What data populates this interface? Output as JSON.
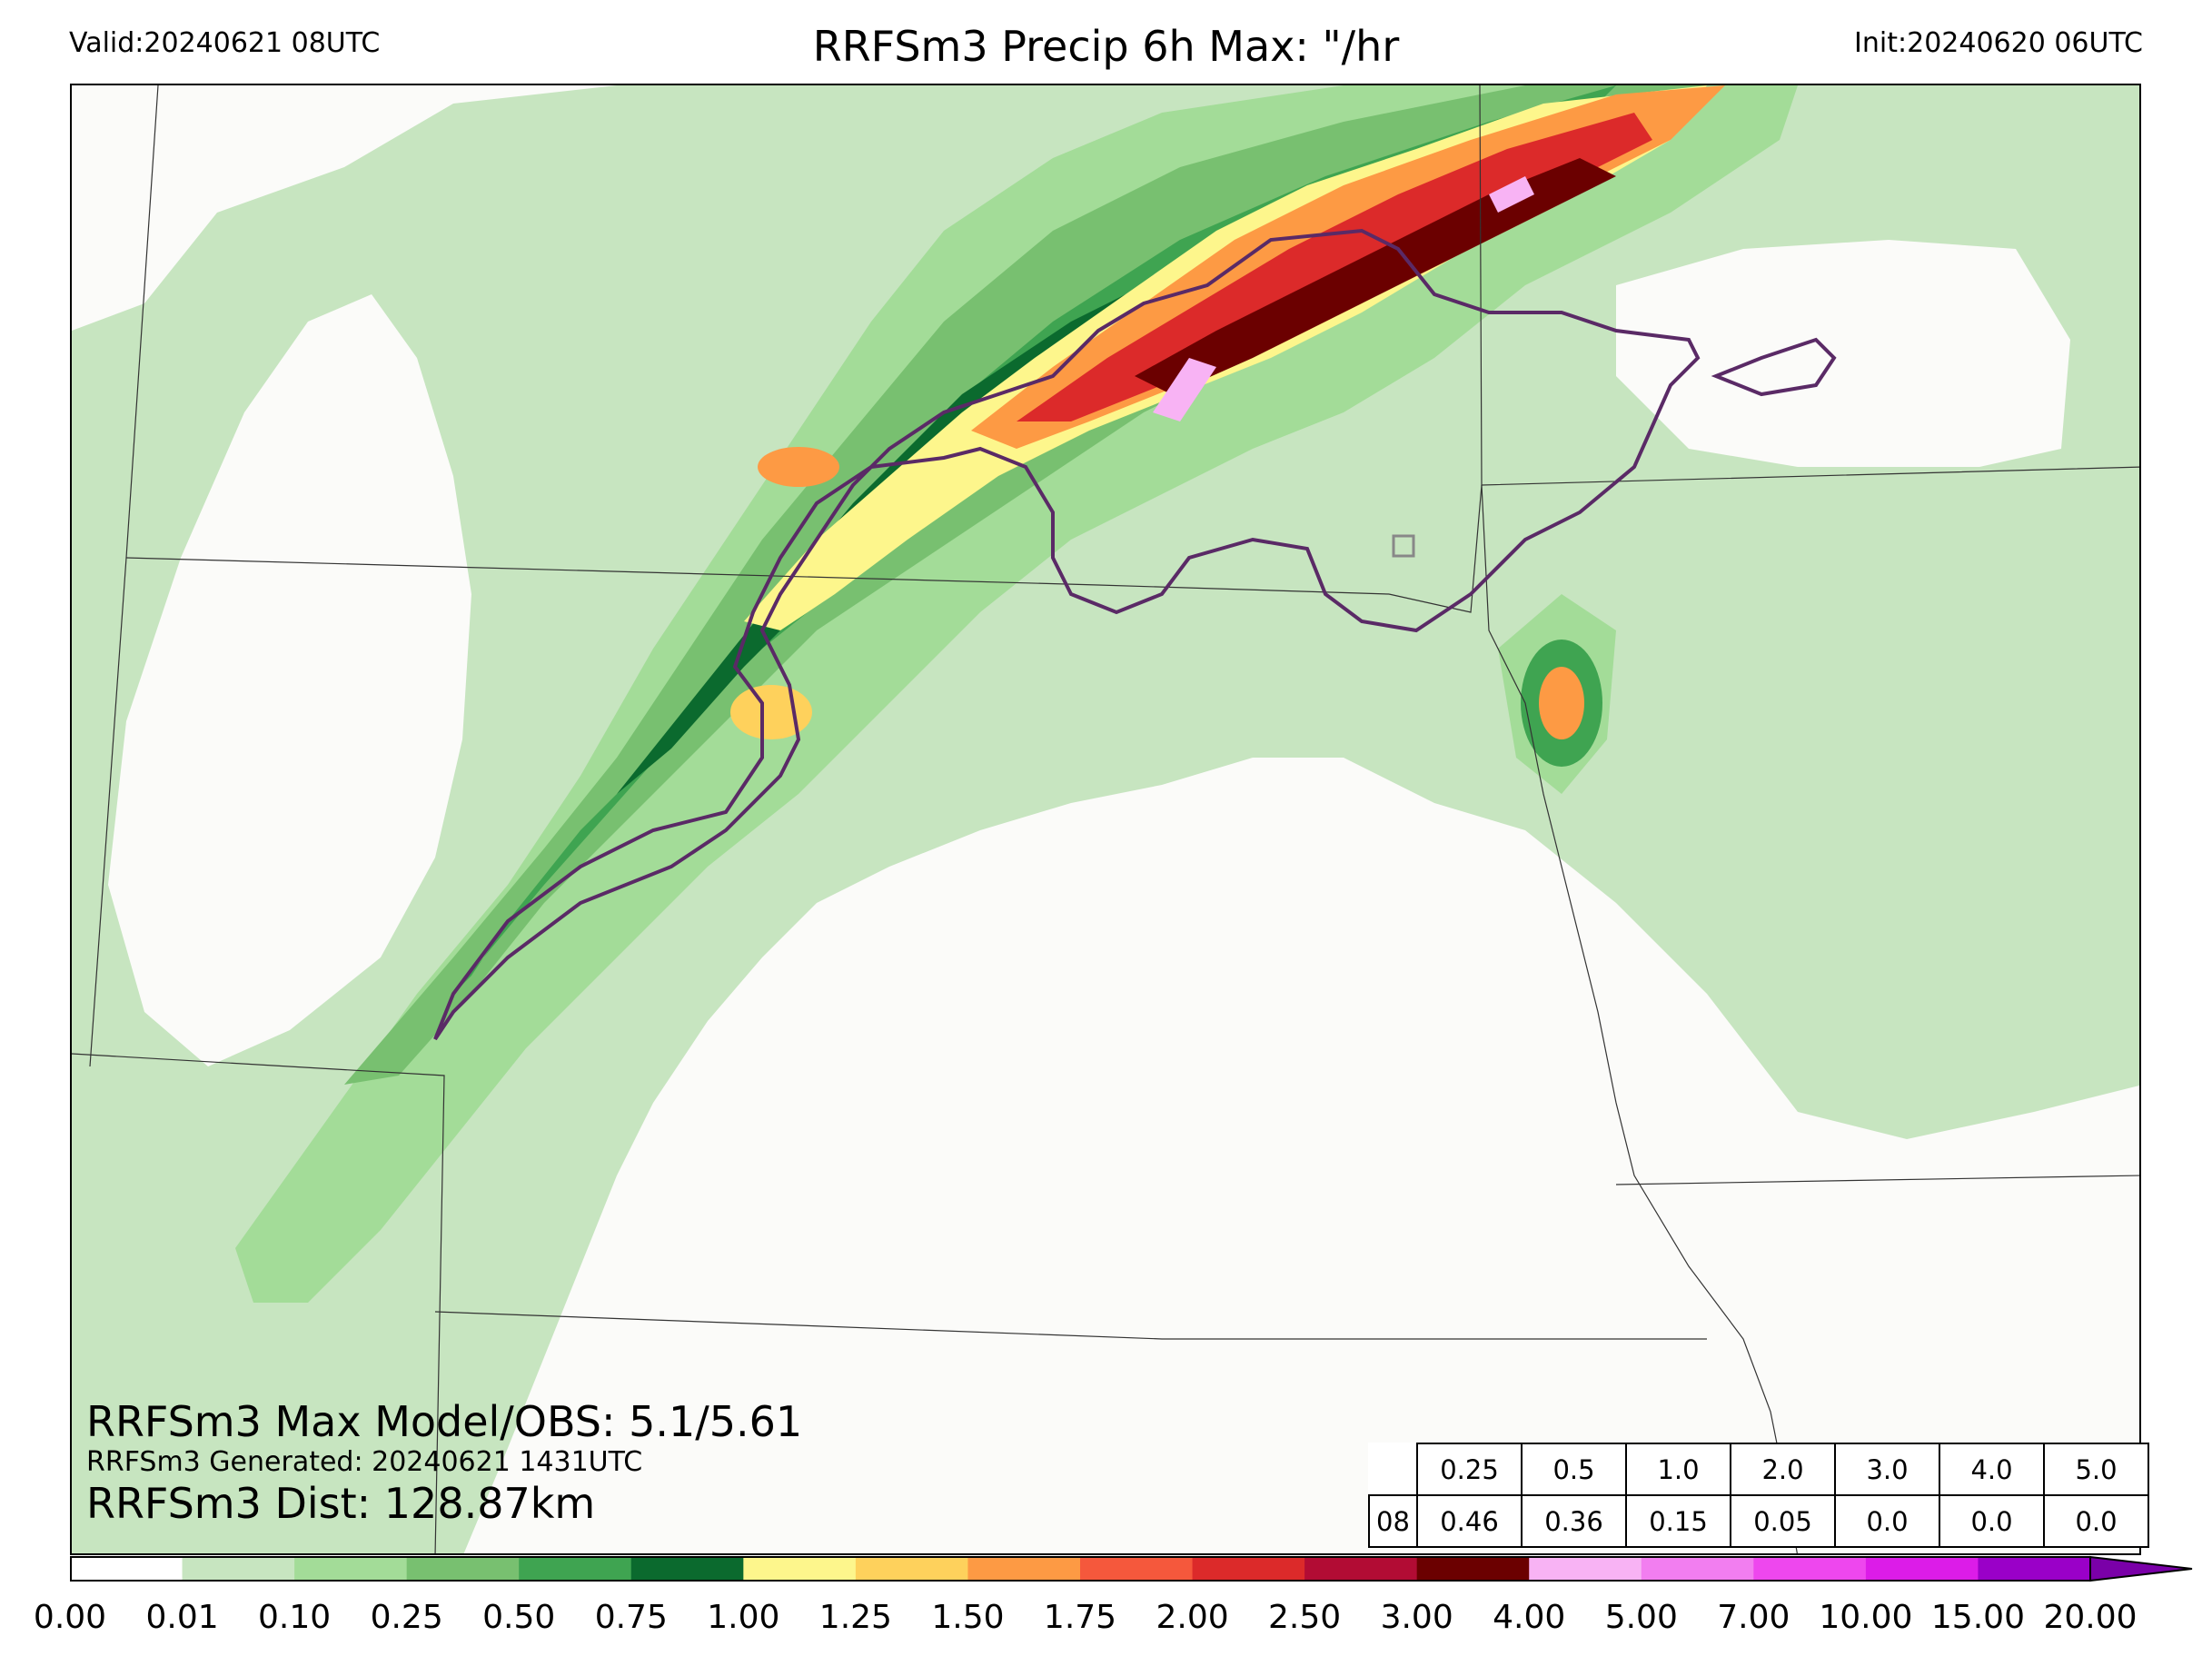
{
  "header": {
    "valid": "Valid:20240621 08UTC",
    "title": "RRFSm3 Precip 6h Max: \"/hr",
    "init": "Init:20240620 06UTC"
  },
  "annotations": {
    "max_model_obs": "RRFSm3 Max Model/OBS: 5.1/5.61",
    "generated": "RRFSm3 Generated: 20240621 1431UTC",
    "dist": "RRFSm3 Dist: 128.87km"
  },
  "stats_table": {
    "thresholds": [
      "0.25",
      "0.5",
      "1.0",
      "2.0",
      "3.0",
      "4.0",
      "5.0"
    ],
    "row_label": "08",
    "values": [
      "0.46",
      "0.36",
      "0.15",
      "0.05",
      "0.0",
      "0.0",
      "0.0"
    ]
  },
  "colorbar": {
    "ticks": [
      "0.00",
      "0.01",
      "0.10",
      "0.25",
      "0.50",
      "0.75",
      "1.00",
      "1.25",
      "1.50",
      "1.75",
      "2.00",
      "2.50",
      "3.00",
      "4.00",
      "5.00",
      "7.00",
      "10.00",
      "15.00",
      "20.00"
    ],
    "colors": [
      "#ffffff",
      "#c7e5c0",
      "#a3dc98",
      "#78c070",
      "#3fa451",
      "#0b6a2e",
      "#fdf68c",
      "#fed15c",
      "#fd9a44",
      "#f5583c",
      "#dc2a2a",
      "#b20c34",
      "#6b0000",
      "#f8b3f4",
      "#f27ef0",
      "#ee47ee",
      "#dc1ce8",
      "#9a00c8"
    ],
    "extend_color": "#7a00a8"
  }
}
